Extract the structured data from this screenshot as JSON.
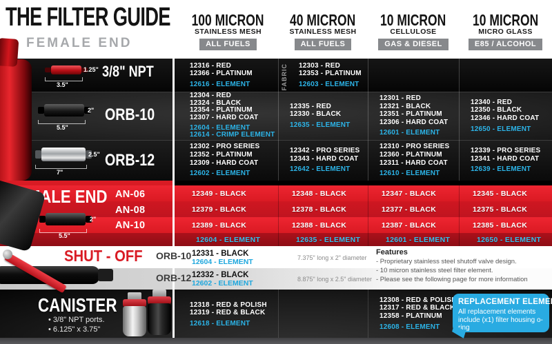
{
  "brand": {
    "title": "THE FILTER GUIDE",
    "subtitle": "FEMALE END"
  },
  "colors": {
    "accent_red": "#d91b24",
    "element_cyan": "#29abe2",
    "badge_gray": "#87898c"
  },
  "columns": [
    {
      "micron": "100 MICRON",
      "media": "STAINLESS MESH",
      "fuel": "ALL FUELS"
    },
    {
      "micron": "40 MICRON",
      "media": "STAINLESS MESH",
      "fuel": "ALL FUELS"
    },
    {
      "micron": "10 MICRON",
      "media": "CELLULOSE",
      "fuel": "GAS & DIESEL"
    },
    {
      "micron": "10 MICRON",
      "media": "MICRO GLASS",
      "fuel": "E85 / ALCOHOL"
    }
  ],
  "female": {
    "rows": [
      {
        "label": "3/8\" NPT",
        "dims": {
          "height": "1.25\"",
          "length": "3.5\""
        },
        "cells": [
          {
            "parts": [
              "12316 - RED",
              "12366 - PLATINUM"
            ],
            "elements": [
              "12616 - ELEMENT"
            ]
          },
          {
            "note": "FABRIC",
            "parts": [
              "12303 - RED",
              "12353 - PLATINUM"
            ],
            "elements": [
              "12603 - ELEMENT"
            ]
          },
          {
            "parts": [],
            "elements": []
          },
          {
            "parts": [],
            "elements": []
          }
        ]
      },
      {
        "label": "ORB-10",
        "dims": {
          "height": "2\"",
          "length": "5.5\""
        },
        "cells": [
          {
            "parts": [
              "12304 - RED",
              "12324 - BLACK",
              "12354 - PLATINUM",
              "12307 - HARD COAT"
            ],
            "elements": [
              "12604 - ELEMENT",
              "12614 - CRIMP ELEMENT"
            ]
          },
          {
            "parts": [
              "12335 - RED",
              "12330 - BLACK"
            ],
            "elements": [
              "12635 - ELEMENT"
            ]
          },
          {
            "parts": [
              "12301 - RED",
              "12321 - BLACK",
              "12351 - PLATINUM",
              "12306 - HARD COAT"
            ],
            "elements": [
              "12601 - ELEMENT"
            ]
          },
          {
            "parts": [
              "12340 - RED",
              "12350 - BLACK",
              "12346 - HARD COAT"
            ],
            "elements": [
              "12650 - ELEMENT"
            ]
          }
        ]
      },
      {
        "label": "ORB-12",
        "dims": {
          "height": "2.5\"",
          "length": "7\""
        },
        "cells": [
          {
            "parts": [
              "12302 - PRO SERIES",
              "12352 - PLATINUM",
              "12309 - HARD COAT"
            ],
            "elements": [
              "12602 - ELEMENT"
            ]
          },
          {
            "parts": [
              "12342 - PRO SERIES",
              "12343 - HARD COAT"
            ],
            "elements": [
              "12642 - ELEMENT"
            ]
          },
          {
            "parts": [
              "12310 - PRO SERIES",
              "12360 - PLATINUM",
              "12311 - HARD COAT"
            ],
            "elements": [
              "12610 - ELEMENT"
            ]
          },
          {
            "parts": [
              "12339 - PRO SERIES",
              "12341 - HARD COAT"
            ],
            "elements": [
              "12639 - ELEMENT"
            ]
          }
        ]
      }
    ]
  },
  "male": {
    "label": "MALE END",
    "dims": {
      "height": "2\"",
      "length": "5.5\""
    },
    "rows": [
      {
        "label": "AN-06",
        "cells": [
          "12349 - BLACK",
          "12348 - BLACK",
          "12347 - BLACK",
          "12345 - BLACK"
        ]
      },
      {
        "label": "AN-08",
        "cells": [
          "12379 - BLACK",
          "12378 - BLACK",
          "12377 - BLACK",
          "12375 - BLACK"
        ]
      },
      {
        "label": "AN-10",
        "cells": [
          "12389 - BLACK",
          "12388 - BLACK",
          "12387 - BLACK",
          "12385 - BLACK"
        ]
      }
    ],
    "elements": [
      "12604 - ELEMENT",
      "12635 - ELEMENT",
      "12601 - ELEMENT",
      "12650 - ELEMENT"
    ]
  },
  "shutoff": {
    "label": "SHUT - OFF",
    "rows": [
      {
        "label": "ORB-10",
        "part": "12331 - BLACK",
        "element": "12604 - ELEMENT",
        "size": "7.375\" long x 2\" diameter"
      },
      {
        "label": "ORB-12",
        "part": "12332 - BLACK",
        "element": "12602 - ELEMENT",
        "size": "8.875\" long x 2.5\" diameter"
      }
    ],
    "features": {
      "title": "Features",
      "items": [
        "- Proprietary stainless steel shutoff valve design.",
        "- 10 micron stainless steel filter element.",
        "- Please see the following page for more information"
      ]
    }
  },
  "canister": {
    "label": "CANISTER",
    "bullets": [
      "• 3/8\" NPT ports.",
      "• 6.125\" x 3.75\""
    ],
    "cells": [
      {
        "parts": [
          "12318 - RED & POLISH",
          "12319 - RED & BLACK"
        ],
        "elements": [
          "12618 - ELEMENT"
        ]
      },
      {
        "parts": [],
        "elements": []
      },
      {
        "parts": [
          "12308 - RED & POLISH",
          "12317 - RED & BLACK",
          "12358 - PLATINUM"
        ],
        "elements": [
          "12608 - ELEMENT"
        ]
      }
    ],
    "callout": {
      "title": "REPLACEMENT ELEMENTS",
      "body": "All replacement elements include (x1) filter housing o-ring"
    }
  }
}
